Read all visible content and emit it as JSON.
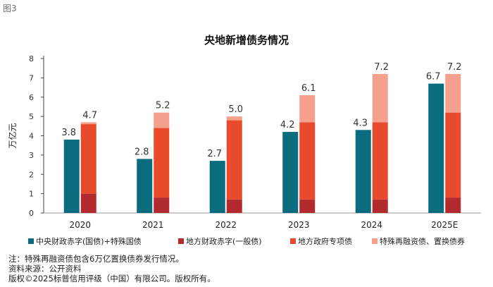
{
  "figure_label": "图3",
  "chart_data": {
    "type": "bar",
    "title": "央地新增债务情况",
    "ylabel": "万亿元",
    "xlabel": "",
    "ylim": [
      0,
      8
    ],
    "yticks": [
      0,
      1,
      2,
      3,
      4,
      5,
      6,
      7,
      8
    ],
    "categories": [
      "2020",
      "2021",
      "2022",
      "2023",
      "2024",
      "2025E"
    ],
    "colors": {
      "central": "#0b6c80",
      "general": "#b22a2e",
      "special": "#e84b2c",
      "refinance": "#f4a08c",
      "axis": "#444444",
      "grid": "#9a9a9a"
    },
    "series": [
      {
        "key": "central",
        "name": "中央财政赤字(国债)+特殊国债",
        "values": [
          3.8,
          2.8,
          2.7,
          4.2,
          4.3,
          6.7
        ]
      },
      {
        "key": "general",
        "name": "地方财政赤字(一般债)",
        "values": [
          1.0,
          0.8,
          0.7,
          0.7,
          0.7,
          0.8
        ]
      },
      {
        "key": "special",
        "name": "地方政府专项债",
        "values": [
          3.6,
          3.6,
          4.1,
          4.0,
          4.0,
          4.4
        ]
      },
      {
        "key": "refinance",
        "name": "特殊再融资债、置换债券",
        "values": [
          0.1,
          0.8,
          0.2,
          1.4,
          2.5,
          2.0
        ]
      }
    ],
    "labels_central": [
      "3.8",
      "2.8",
      "2.7",
      "4.2",
      "4.3",
      "6.7"
    ],
    "labels_local_total": [
      "4.7",
      "5.2",
      "5.0",
      "6.1",
      "7.2",
      "7.2"
    ],
    "local_totals": [
      4.7,
      5.2,
      5.0,
      6.1,
      7.2,
      7.2
    ],
    "legend_position": "bottom"
  },
  "footnotes": {
    "note": "注：特殊再融资债包含6万亿置换债券发行情况。",
    "source": "资料来源：公开资料",
    "copyright": "版权©2025标普信用评级（中国）有限公司。版权所有。"
  }
}
